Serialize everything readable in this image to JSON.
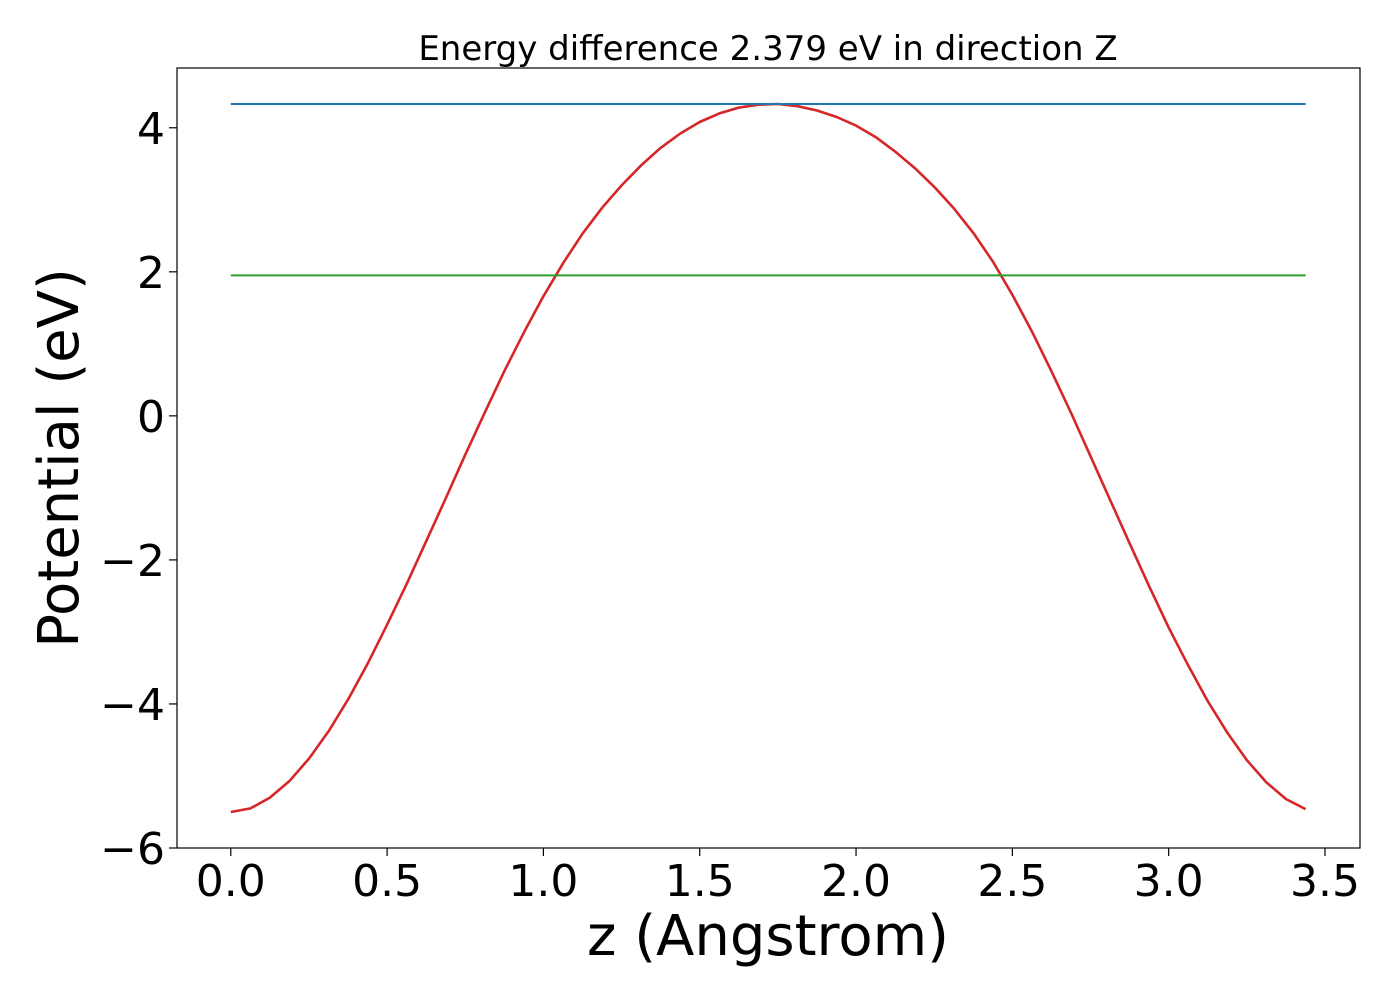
{
  "chart_data": {
    "type": "line",
    "title": "Energy difference 2.379 eV in direction Z",
    "xlabel": "z (Angstrom)",
    "ylabel": "Potential (eV)",
    "xlim": [
      -0.172,
      3.612
    ],
    "ylim": [
      -6.0,
      4.83
    ],
    "xticks": [
      0.0,
      0.5,
      1.0,
      1.5,
      2.0,
      2.5,
      3.0,
      3.5
    ],
    "xtick_labels": [
      "0.0",
      "0.5",
      "1.0",
      "1.5",
      "2.0",
      "2.5",
      "3.0",
      "3.5"
    ],
    "yticks": [
      -6,
      -4,
      -2,
      0,
      2,
      4
    ],
    "ytick_labels": [
      "−6",
      "−4",
      "−2",
      "0",
      "2",
      "4"
    ],
    "grid": false,
    "series": [
      {
        "color": "#d62728",
        "x": [
          0.0,
          0.063,
          0.125,
          0.188,
          0.25,
          0.313,
          0.375,
          0.438,
          0.5,
          0.563,
          0.625,
          0.688,
          0.75,
          0.813,
          0.875,
          0.938,
          1.0,
          1.063,
          1.125,
          1.188,
          1.25,
          1.313,
          1.375,
          1.438,
          1.5,
          1.563,
          1.625,
          1.688,
          1.75,
          1.813,
          1.875,
          1.938,
          2.0,
          2.063,
          2.125,
          2.188,
          2.25,
          2.313,
          2.375,
          2.438,
          2.5,
          2.563,
          2.625,
          2.688,
          2.75,
          2.813,
          2.875,
          2.938,
          3.0,
          3.063,
          3.125,
          3.188,
          3.25,
          3.313,
          3.375,
          3.438
        ],
        "y": [
          -5.5,
          -5.45,
          -5.3,
          -5.07,
          -4.76,
          -4.38,
          -3.94,
          -3.44,
          -2.9,
          -2.33,
          -1.74,
          -1.14,
          -0.54,
          0.05,
          0.62,
          1.16,
          1.66,
          2.12,
          2.53,
          2.89,
          3.2,
          3.48,
          3.72,
          3.92,
          4.08,
          4.2,
          4.28,
          4.32,
          4.33,
          4.3,
          4.24,
          4.15,
          4.03,
          3.87,
          3.67,
          3.44,
          3.18,
          2.88,
          2.54,
          2.14,
          1.68,
          1.17,
          0.62,
          0.04,
          -0.56,
          -1.17,
          -1.77,
          -2.37,
          -2.94,
          -3.47,
          -3.96,
          -4.4,
          -4.78,
          -5.09,
          -5.32,
          -5.46
        ]
      },
      {
        "color": "#1f77b4",
        "x": [
          0.0,
          3.438
        ],
        "y": [
          4.33,
          4.33
        ]
      },
      {
        "color": "#2ca02c",
        "x": [
          0.0,
          3.438
        ],
        "y": [
          1.95,
          1.95
        ]
      }
    ]
  }
}
